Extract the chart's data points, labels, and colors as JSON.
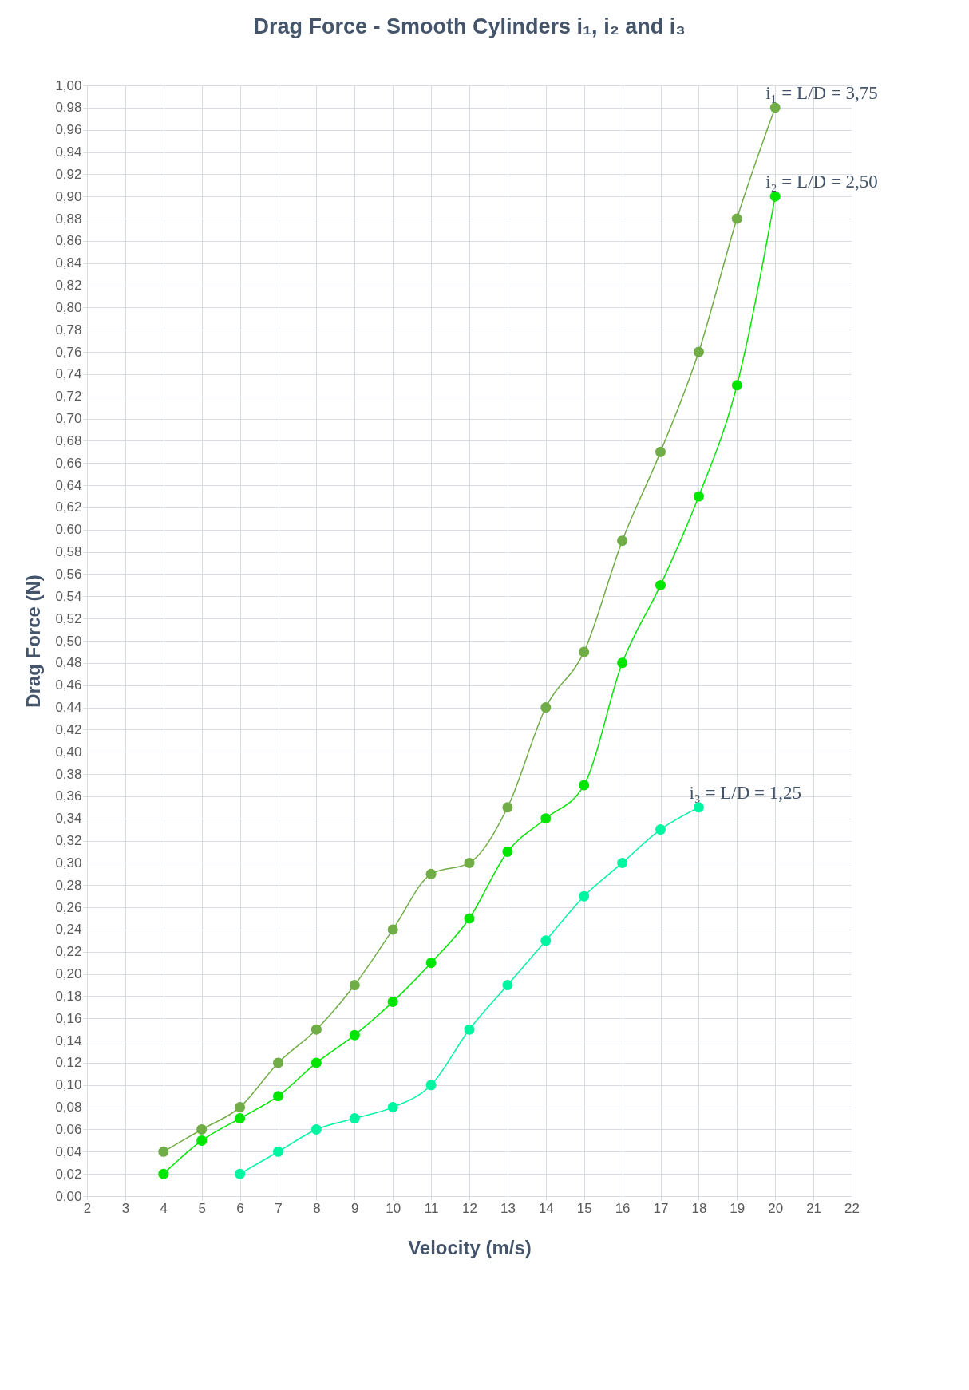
{
  "chart_data": {
    "type": "line",
    "title": "Drag Force - Smooth Cylinders i₁, i₂ and i₃",
    "xlabel": "Velocity (m/s)",
    "ylabel": "Drag Force (N)",
    "series": [
      {
        "name": "i₁ = L/D = 3,75",
        "color": "#70ad47",
        "x": [
          4,
          5,
          6,
          7,
          8,
          9,
          10,
          11,
          12,
          13,
          14,
          15,
          16,
          17,
          18,
          19,
          20
        ],
        "values": [
          0.04,
          0.06,
          0.08,
          0.12,
          0.15,
          0.19,
          0.24,
          0.29,
          0.3,
          0.35,
          0.44,
          0.49,
          0.59,
          0.67,
          0.76,
          0.88,
          0.98
        ]
      },
      {
        "name": "i₂ = L/D = 2,50",
        "color": "#00e600",
        "x": [
          4,
          5,
          6,
          7,
          8,
          9,
          10,
          11,
          12,
          13,
          14,
          15,
          16,
          17,
          18,
          19,
          20
        ],
        "values": [
          0.02,
          0.05,
          0.07,
          0.09,
          0.12,
          0.145,
          0.175,
          0.21,
          0.25,
          0.31,
          0.34,
          0.37,
          0.48,
          0.55,
          0.63,
          0.73,
          0.9
        ]
      },
      {
        "name": "i₃ = L/D = 1,25",
        "color": "#00f5a0",
        "x": [
          6,
          7,
          8,
          9,
          10,
          11,
          12,
          13,
          14,
          15,
          16,
          17,
          18
        ],
        "values": [
          0.02,
          0.04,
          0.06,
          0.07,
          0.08,
          0.1,
          0.15,
          0.19,
          0.23,
          0.27,
          0.3,
          0.33,
          0.35
        ]
      }
    ],
    "xlim": [
      2,
      22
    ],
    "xticks": [
      2,
      3,
      4,
      5,
      6,
      7,
      8,
      9,
      10,
      11,
      12,
      13,
      14,
      15,
      16,
      17,
      18,
      19,
      20,
      21,
      22
    ],
    "ylim": [
      0,
      1
    ],
    "yticks": [
      {
        "value": 0,
        "label": "0,00"
      },
      {
        "value": 0.02,
        "label": "0,02"
      },
      {
        "value": 0.04,
        "label": "0,04"
      },
      {
        "value": 0.06,
        "label": "0,06"
      },
      {
        "value": 0.08,
        "label": "0,08"
      },
      {
        "value": 0.1,
        "label": "0,10"
      },
      {
        "value": 0.12,
        "label": "0,12"
      },
      {
        "value": 0.14,
        "label": "0,14"
      },
      {
        "value": 0.16,
        "label": "0,16"
      },
      {
        "value": 0.18,
        "label": "0,18"
      },
      {
        "value": 0.2,
        "label": "0,20"
      },
      {
        "value": 0.22,
        "label": "0,22"
      },
      {
        "value": 0.24,
        "label": "0,24"
      },
      {
        "value": 0.26,
        "label": "0,26"
      },
      {
        "value": 0.28,
        "label": "0,28"
      },
      {
        "value": 0.3,
        "label": "0,30"
      },
      {
        "value": 0.32,
        "label": "0,32"
      },
      {
        "value": 0.34,
        "label": "0,34"
      },
      {
        "value": 0.36,
        "label": "0,36"
      },
      {
        "value": 0.38,
        "label": "0,38"
      },
      {
        "value": 0.4,
        "label": "0,40"
      },
      {
        "value": 0.42,
        "label": "0,42"
      },
      {
        "value": 0.44,
        "label": "0,44"
      },
      {
        "value": 0.46,
        "label": "0,46"
      },
      {
        "value": 0.48,
        "label": "0,48"
      },
      {
        "value": 0.5,
        "label": "0,50"
      },
      {
        "value": 0.52,
        "label": "0,52"
      },
      {
        "value": 0.54,
        "label": "0,54"
      },
      {
        "value": 0.56,
        "label": "0,56"
      },
      {
        "value": 0.58,
        "label": "0,58"
      },
      {
        "value": 0.6,
        "label": "0,60"
      },
      {
        "value": 0.62,
        "label": "0,62"
      },
      {
        "value": 0.64,
        "label": "0,64"
      },
      {
        "value": 0.66,
        "label": "0,66"
      },
      {
        "value": 0.68,
        "label": "0,68"
      },
      {
        "value": 0.7,
        "label": "0,70"
      },
      {
        "value": 0.72,
        "label": "0,72"
      },
      {
        "value": 0.74,
        "label": "0,74"
      },
      {
        "value": 0.76,
        "label": "0,76"
      },
      {
        "value": 0.78,
        "label": "0,78"
      },
      {
        "value": 0.8,
        "label": "0,80"
      },
      {
        "value": 0.82,
        "label": "0,82"
      },
      {
        "value": 0.84,
        "label": "0,84"
      },
      {
        "value": 0.86,
        "label": "0,86"
      },
      {
        "value": 0.88,
        "label": "0,88"
      },
      {
        "value": 0.9,
        "label": "0,90"
      },
      {
        "value": 0.92,
        "label": "0,92"
      },
      {
        "value": 0.94,
        "label": "0,94"
      },
      {
        "value": 0.96,
        "label": "0,96"
      },
      {
        "value": 0.98,
        "label": "0,98"
      },
      {
        "value": 1,
        "label": "1,00"
      }
    ],
    "grid": true,
    "marker": "circle",
    "line_style": "solid"
  }
}
